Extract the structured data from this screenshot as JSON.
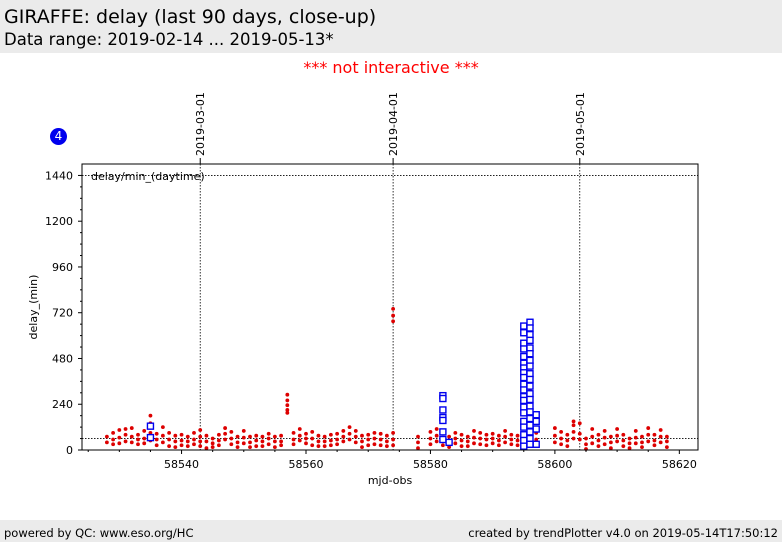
{
  "header": {
    "title": "GIRAFFE: delay (last 90 days, close-up)",
    "subtitle": "Data range: 2019-02-14 ... 2019-05-13*"
  },
  "notice": "*** not interactive ***",
  "badge": "4",
  "footer": {
    "left": "powered by QC: www.eso.org/HC",
    "right": "created by trendPlotter v4.0 on 2019-05-14T17:50:12"
  },
  "colors": {
    "daytime_points": "#dd0000",
    "highlight_points": "#0000ee",
    "notice": "#ff0000",
    "header_bg": "#ebebeb"
  },
  "chart_data": {
    "type": "scatter",
    "xlabel": "mjd-obs",
    "ylabel": "delay_(min)",
    "panel_label": "delay/min_(daytime)",
    "xlim": [
      58524,
      58623
    ],
    "ylim": [
      0,
      1500
    ],
    "x_ticks": [
      58540,
      58560,
      58580,
      58600,
      58620
    ],
    "y_ticks": [
      0,
      240,
      480,
      720,
      960,
      1200,
      1440
    ],
    "hline_levels": [
      1440,
      60
    ],
    "date_markers": [
      {
        "label": "2019-03-01",
        "mjd": 58543
      },
      {
        "label": "2019-04-01",
        "mjd": 58574
      },
      {
        "label": "2019-05-01",
        "mjd": 58604
      }
    ],
    "series": [
      {
        "marker": "dot",
        "color": "#dd0000",
        "points": [
          [
            58528,
            70
          ],
          [
            58528,
            40
          ],
          [
            58529,
            90
          ],
          [
            58529,
            55
          ],
          [
            58529,
            30
          ],
          [
            58530,
            105
          ],
          [
            58530,
            65
          ],
          [
            58530,
            35
          ],
          [
            58531,
            110
          ],
          [
            58531,
            80
          ],
          [
            58531,
            45
          ],
          [
            58532,
            115
          ],
          [
            58532,
            70
          ],
          [
            58532,
            40
          ],
          [
            58533,
            80
          ],
          [
            58533,
            55
          ],
          [
            58533,
            30
          ],
          [
            58534,
            100
          ],
          [
            58534,
            60
          ],
          [
            58534,
            35
          ],
          [
            58535,
            180
          ],
          [
            58535,
            140
          ],
          [
            58535,
            90
          ],
          [
            58535,
            50
          ],
          [
            58536,
            85
          ],
          [
            58536,
            55
          ],
          [
            58536,
            25
          ],
          [
            58537,
            120
          ],
          [
            58537,
            75
          ],
          [
            58537,
            40
          ],
          [
            58538,
            90
          ],
          [
            58538,
            55
          ],
          [
            58538,
            20
          ],
          [
            58539,
            75
          ],
          [
            58539,
            45
          ],
          [
            58539,
            15
          ],
          [
            58540,
            80
          ],
          [
            58540,
            50
          ],
          [
            58540,
            25
          ],
          [
            58541,
            70
          ],
          [
            58541,
            45
          ],
          [
            58541,
            20
          ],
          [
            58542,
            90
          ],
          [
            58542,
            55
          ],
          [
            58542,
            30
          ],
          [
            58543,
            105
          ],
          [
            58543,
            70
          ],
          [
            58543,
            45
          ],
          [
            58543,
            20
          ],
          [
            58544,
            75
          ],
          [
            58544,
            45
          ],
          [
            58544,
            10
          ],
          [
            58545,
            60
          ],
          [
            58545,
            35
          ],
          [
            58545,
            15
          ],
          [
            58546,
            80
          ],
          [
            58546,
            50
          ],
          [
            58546,
            25
          ],
          [
            58547,
            115
          ],
          [
            58547,
            85
          ],
          [
            58547,
            55
          ],
          [
            58548,
            95
          ],
          [
            58548,
            60
          ],
          [
            58548,
            30
          ],
          [
            58549,
            70
          ],
          [
            58549,
            40
          ],
          [
            58549,
            15
          ],
          [
            58550,
            100
          ],
          [
            58550,
            65
          ],
          [
            58550,
            35
          ],
          [
            58551,
            70
          ],
          [
            58551,
            40
          ],
          [
            58551,
            15
          ],
          [
            58552,
            75
          ],
          [
            58552,
            50
          ],
          [
            58552,
            20
          ],
          [
            58553,
            70
          ],
          [
            58553,
            45
          ],
          [
            58553,
            20
          ],
          [
            58554,
            85
          ],
          [
            58554,
            60
          ],
          [
            58554,
            30
          ],
          [
            58555,
            70
          ],
          [
            58555,
            45
          ],
          [
            58555,
            15
          ],
          [
            58556,
            75
          ],
          [
            58556,
            45
          ],
          [
            58556,
            25
          ],
          [
            58557,
            290
          ],
          [
            58557,
            260
          ],
          [
            58557,
            235
          ],
          [
            58557,
            210
          ],
          [
            58557,
            195
          ],
          [
            58558,
            90
          ],
          [
            58558,
            55
          ],
          [
            58558,
            30
          ],
          [
            58559,
            110
          ],
          [
            58559,
            75
          ],
          [
            58559,
            50
          ],
          [
            58560,
            85
          ],
          [
            58560,
            60
          ],
          [
            58560,
            35
          ],
          [
            58561,
            95
          ],
          [
            58561,
            60
          ],
          [
            58561,
            25
          ],
          [
            58562,
            75
          ],
          [
            58562,
            45
          ],
          [
            58562,
            20
          ],
          [
            58563,
            70
          ],
          [
            58563,
            45
          ],
          [
            58563,
            20
          ],
          [
            58564,
            80
          ],
          [
            58564,
            50
          ],
          [
            58564,
            25
          ],
          [
            58565,
            85
          ],
          [
            58565,
            55
          ],
          [
            58565,
            30
          ],
          [
            58566,
            100
          ],
          [
            58566,
            70
          ],
          [
            58566,
            45
          ],
          [
            58567,
            120
          ],
          [
            58567,
            85
          ],
          [
            58567,
            55
          ],
          [
            58568,
            100
          ],
          [
            58568,
            70
          ],
          [
            58568,
            40
          ],
          [
            58569,
            75
          ],
          [
            58569,
            45
          ],
          [
            58569,
            15
          ],
          [
            58570,
            80
          ],
          [
            58570,
            55
          ],
          [
            58570,
            25
          ],
          [
            58571,
            90
          ],
          [
            58571,
            60
          ],
          [
            58571,
            30
          ],
          [
            58572,
            85
          ],
          [
            58572,
            55
          ],
          [
            58572,
            25
          ],
          [
            58573,
            75
          ],
          [
            58573,
            45
          ],
          [
            58573,
            20
          ],
          [
            58574,
            740
          ],
          [
            58574,
            705
          ],
          [
            58574,
            675
          ],
          [
            58574,
            90
          ],
          [
            58574,
            55
          ],
          [
            58574,
            25
          ],
          [
            58578,
            70
          ],
          [
            58578,
            40
          ],
          [
            58578,
            10
          ],
          [
            58580,
            95
          ],
          [
            58580,
            60
          ],
          [
            58580,
            30
          ],
          [
            58581,
            110
          ],
          [
            58581,
            75
          ],
          [
            58581,
            45
          ],
          [
            58582,
            85
          ],
          [
            58582,
            55
          ],
          [
            58582,
            25
          ],
          [
            58583,
            70
          ],
          [
            58583,
            45
          ],
          [
            58583,
            15
          ],
          [
            58584,
            90
          ],
          [
            58584,
            60
          ],
          [
            58584,
            35
          ],
          [
            58585,
            80
          ],
          [
            58585,
            50
          ],
          [
            58585,
            20
          ],
          [
            58586,
            70
          ],
          [
            58586,
            45
          ],
          [
            58586,
            20
          ],
          [
            58587,
            100
          ],
          [
            58587,
            65
          ],
          [
            58587,
            35
          ],
          [
            58588,
            90
          ],
          [
            58588,
            60
          ],
          [
            58588,
            30
          ],
          [
            58589,
            80
          ],
          [
            58589,
            55
          ],
          [
            58589,
            25
          ],
          [
            58590,
            85
          ],
          [
            58590,
            60
          ],
          [
            58590,
            35
          ],
          [
            58591,
            75
          ],
          [
            58591,
            50
          ],
          [
            58591,
            25
          ],
          [
            58592,
            100
          ],
          [
            58592,
            70
          ],
          [
            58592,
            40
          ],
          [
            58593,
            80
          ],
          [
            58593,
            55
          ],
          [
            58593,
            30
          ],
          [
            58594,
            75
          ],
          [
            58594,
            50
          ],
          [
            58594,
            25
          ],
          [
            58596,
            310
          ],
          [
            58596,
            275
          ],
          [
            58596,
            120
          ],
          [
            58596,
            80
          ],
          [
            58597,
            90
          ],
          [
            58597,
            55
          ],
          [
            58600,
            115
          ],
          [
            58600,
            75
          ],
          [
            58600,
            40
          ],
          [
            58601,
            95
          ],
          [
            58601,
            60
          ],
          [
            58601,
            30
          ],
          [
            58602,
            80
          ],
          [
            58602,
            50
          ],
          [
            58602,
            20
          ],
          [
            58603,
            150
          ],
          [
            58603,
            130
          ],
          [
            58603,
            95
          ],
          [
            58603,
            60
          ],
          [
            58604,
            140
          ],
          [
            58604,
            85
          ],
          [
            58604,
            55
          ],
          [
            58605,
            60
          ],
          [
            58605,
            30
          ],
          [
            58605,
            5
          ],
          [
            58606,
            110
          ],
          [
            58606,
            70
          ],
          [
            58606,
            35
          ],
          [
            58607,
            80
          ],
          [
            58607,
            50
          ],
          [
            58607,
            20
          ],
          [
            58608,
            100
          ],
          [
            58608,
            65
          ],
          [
            58608,
            30
          ],
          [
            58609,
            70
          ],
          [
            58609,
            40
          ],
          [
            58609,
            10
          ],
          [
            58610,
            110
          ],
          [
            58610,
            75
          ],
          [
            58610,
            45
          ],
          [
            58611,
            80
          ],
          [
            58611,
            50
          ],
          [
            58611,
            20
          ],
          [
            58612,
            60
          ],
          [
            58612,
            35
          ],
          [
            58612,
            10
          ],
          [
            58613,
            100
          ],
          [
            58613,
            65
          ],
          [
            58613,
            35
          ],
          [
            58614,
            70
          ],
          [
            58614,
            40
          ],
          [
            58614,
            15
          ],
          [
            58615,
            115
          ],
          [
            58615,
            80
          ],
          [
            58615,
            45
          ],
          [
            58616,
            80
          ],
          [
            58616,
            50
          ],
          [
            58616,
            25
          ],
          [
            58617,
            105
          ],
          [
            58617,
            70
          ],
          [
            58617,
            40
          ],
          [
            58618,
            70
          ],
          [
            58618,
            45
          ],
          [
            58618,
            15
          ]
        ]
      },
      {
        "marker": "open-square",
        "color": "#0000ee",
        "points": [
          [
            58535,
            125
          ],
          [
            58535,
            65
          ],
          [
            58582,
            285
          ],
          [
            58582,
            270
          ],
          [
            58582,
            210
          ],
          [
            58582,
            170
          ],
          [
            58582,
            155
          ],
          [
            58582,
            95
          ],
          [
            58582,
            55
          ],
          [
            58583,
            40
          ],
          [
            58595,
            650
          ],
          [
            58595,
            615
          ],
          [
            58595,
            560
          ],
          [
            58595,
            530
          ],
          [
            58595,
            490
          ],
          [
            58595,
            455
          ],
          [
            58595,
            430
          ],
          [
            58595,
            405
          ],
          [
            58595,
            380
          ],
          [
            58595,
            345
          ],
          [
            58595,
            315
          ],
          [
            58595,
            280
          ],
          [
            58595,
            260
          ],
          [
            58595,
            225
          ],
          [
            58595,
            195
          ],
          [
            58595,
            150
          ],
          [
            58595,
            120
          ],
          [
            58595,
            80
          ],
          [
            58595,
            50
          ],
          [
            58595,
            20
          ],
          [
            58596,
            670
          ],
          [
            58596,
            640
          ],
          [
            58596,
            605
          ],
          [
            58596,
            575
          ],
          [
            58596,
            535
          ],
          [
            58596,
            505
          ],
          [
            58596,
            470
          ],
          [
            58596,
            440
          ],
          [
            58596,
            400
          ],
          [
            58596,
            370
          ],
          [
            58596,
            335
          ],
          [
            58596,
            295
          ],
          [
            58596,
            265
          ],
          [
            58596,
            230
          ],
          [
            58596,
            200
          ],
          [
            58596,
            165
          ],
          [
            58596,
            130
          ],
          [
            58596,
            95
          ],
          [
            58596,
            60
          ],
          [
            58596,
            30
          ],
          [
            58597,
            185
          ],
          [
            58597,
            150
          ],
          [
            58597,
            110
          ],
          [
            58597,
            30
          ]
        ]
      }
    ]
  }
}
